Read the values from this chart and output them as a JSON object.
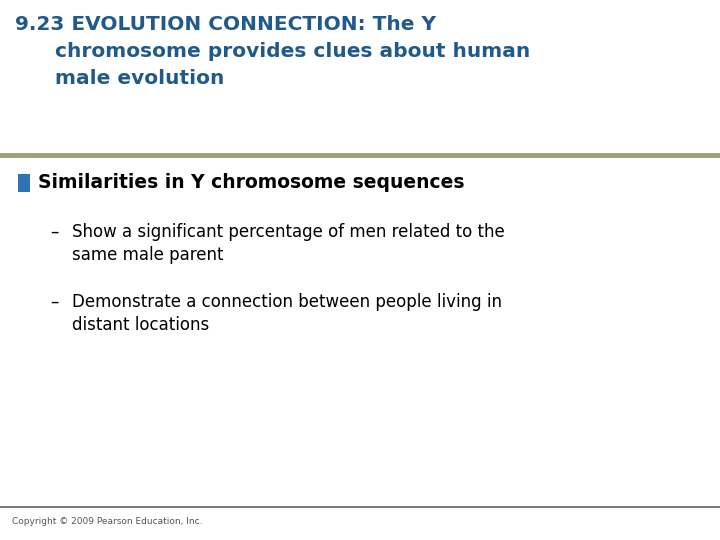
{
  "title_line1": "9.23 EVOLUTION CONNECTION: The Y",
  "title_line2": "chromosome provides clues about human",
  "title_line3": "male evolution",
  "title_color": "#1F5A8A",
  "bullet_color": "#2E74B5",
  "bullet_text": "Similarities in Y chromosome sequences",
  "sub1_text1": "Show a significant percentage of men related to the",
  "sub1_text2": "same male parent",
  "sub2_text1": "Demonstrate a connection between people living in",
  "sub2_text2": "distant locations",
  "body_text_color": "#000000",
  "bg_color": "#FFFFFF",
  "footer_text": "Copyright © 2009 Pearson Education, Inc.",
  "footer_color": "#555555",
  "separator_color": "#A0A07A",
  "bottom_line_color": "#606060"
}
